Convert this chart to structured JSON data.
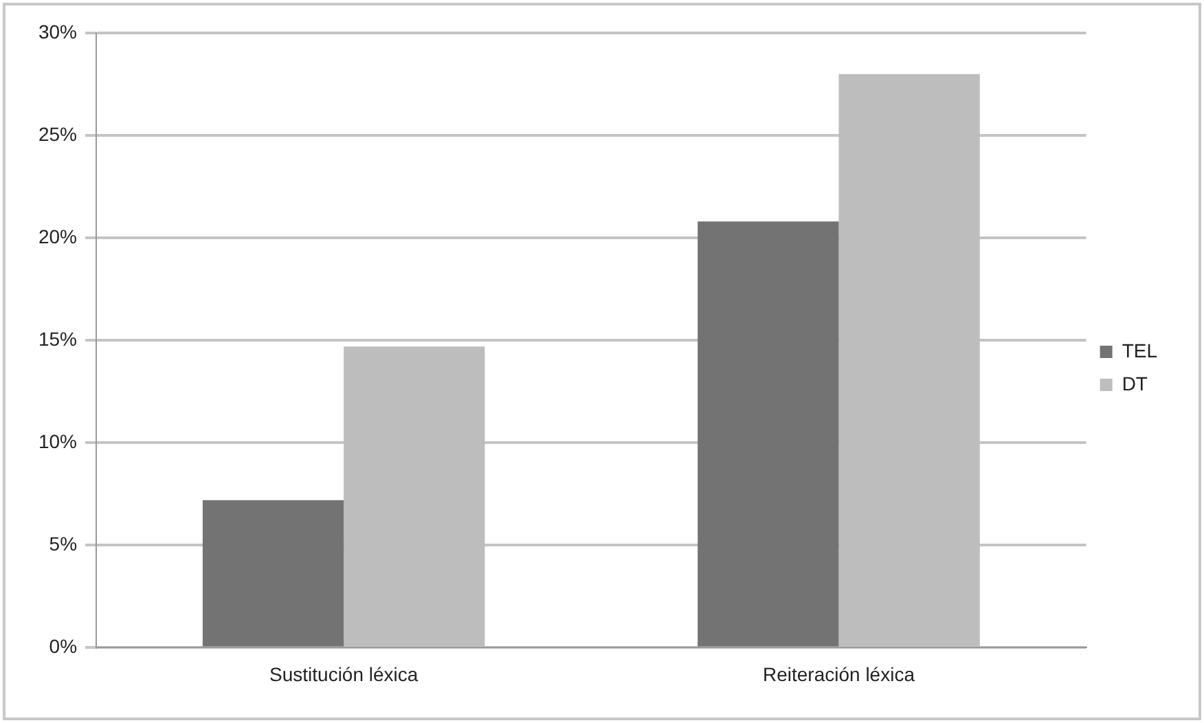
{
  "chart_data": {
    "type": "bar",
    "categories": [
      "Sustitución léxica",
      "Reiteración léxica"
    ],
    "series": [
      {
        "name": "TEL",
        "color": "#737373",
        "values": [
          7.2,
          20.8
        ]
      },
      {
        "name": "DT",
        "color": "#bdbdbd",
        "values": [
          14.7,
          28.0
        ]
      }
    ],
    "ylim": [
      0,
      30
    ],
    "yticks": [
      {
        "value": 0,
        "label": "0%"
      },
      {
        "value": 5,
        "label": "5%"
      },
      {
        "value": 10,
        "label": "10%"
      },
      {
        "value": 15,
        "label": "15%"
      },
      {
        "value": 20,
        "label": "20%"
      },
      {
        "value": 25,
        "label": "25%"
      },
      {
        "value": 30,
        "label": "30%"
      }
    ],
    "grid": "y",
    "legend": "right"
  }
}
